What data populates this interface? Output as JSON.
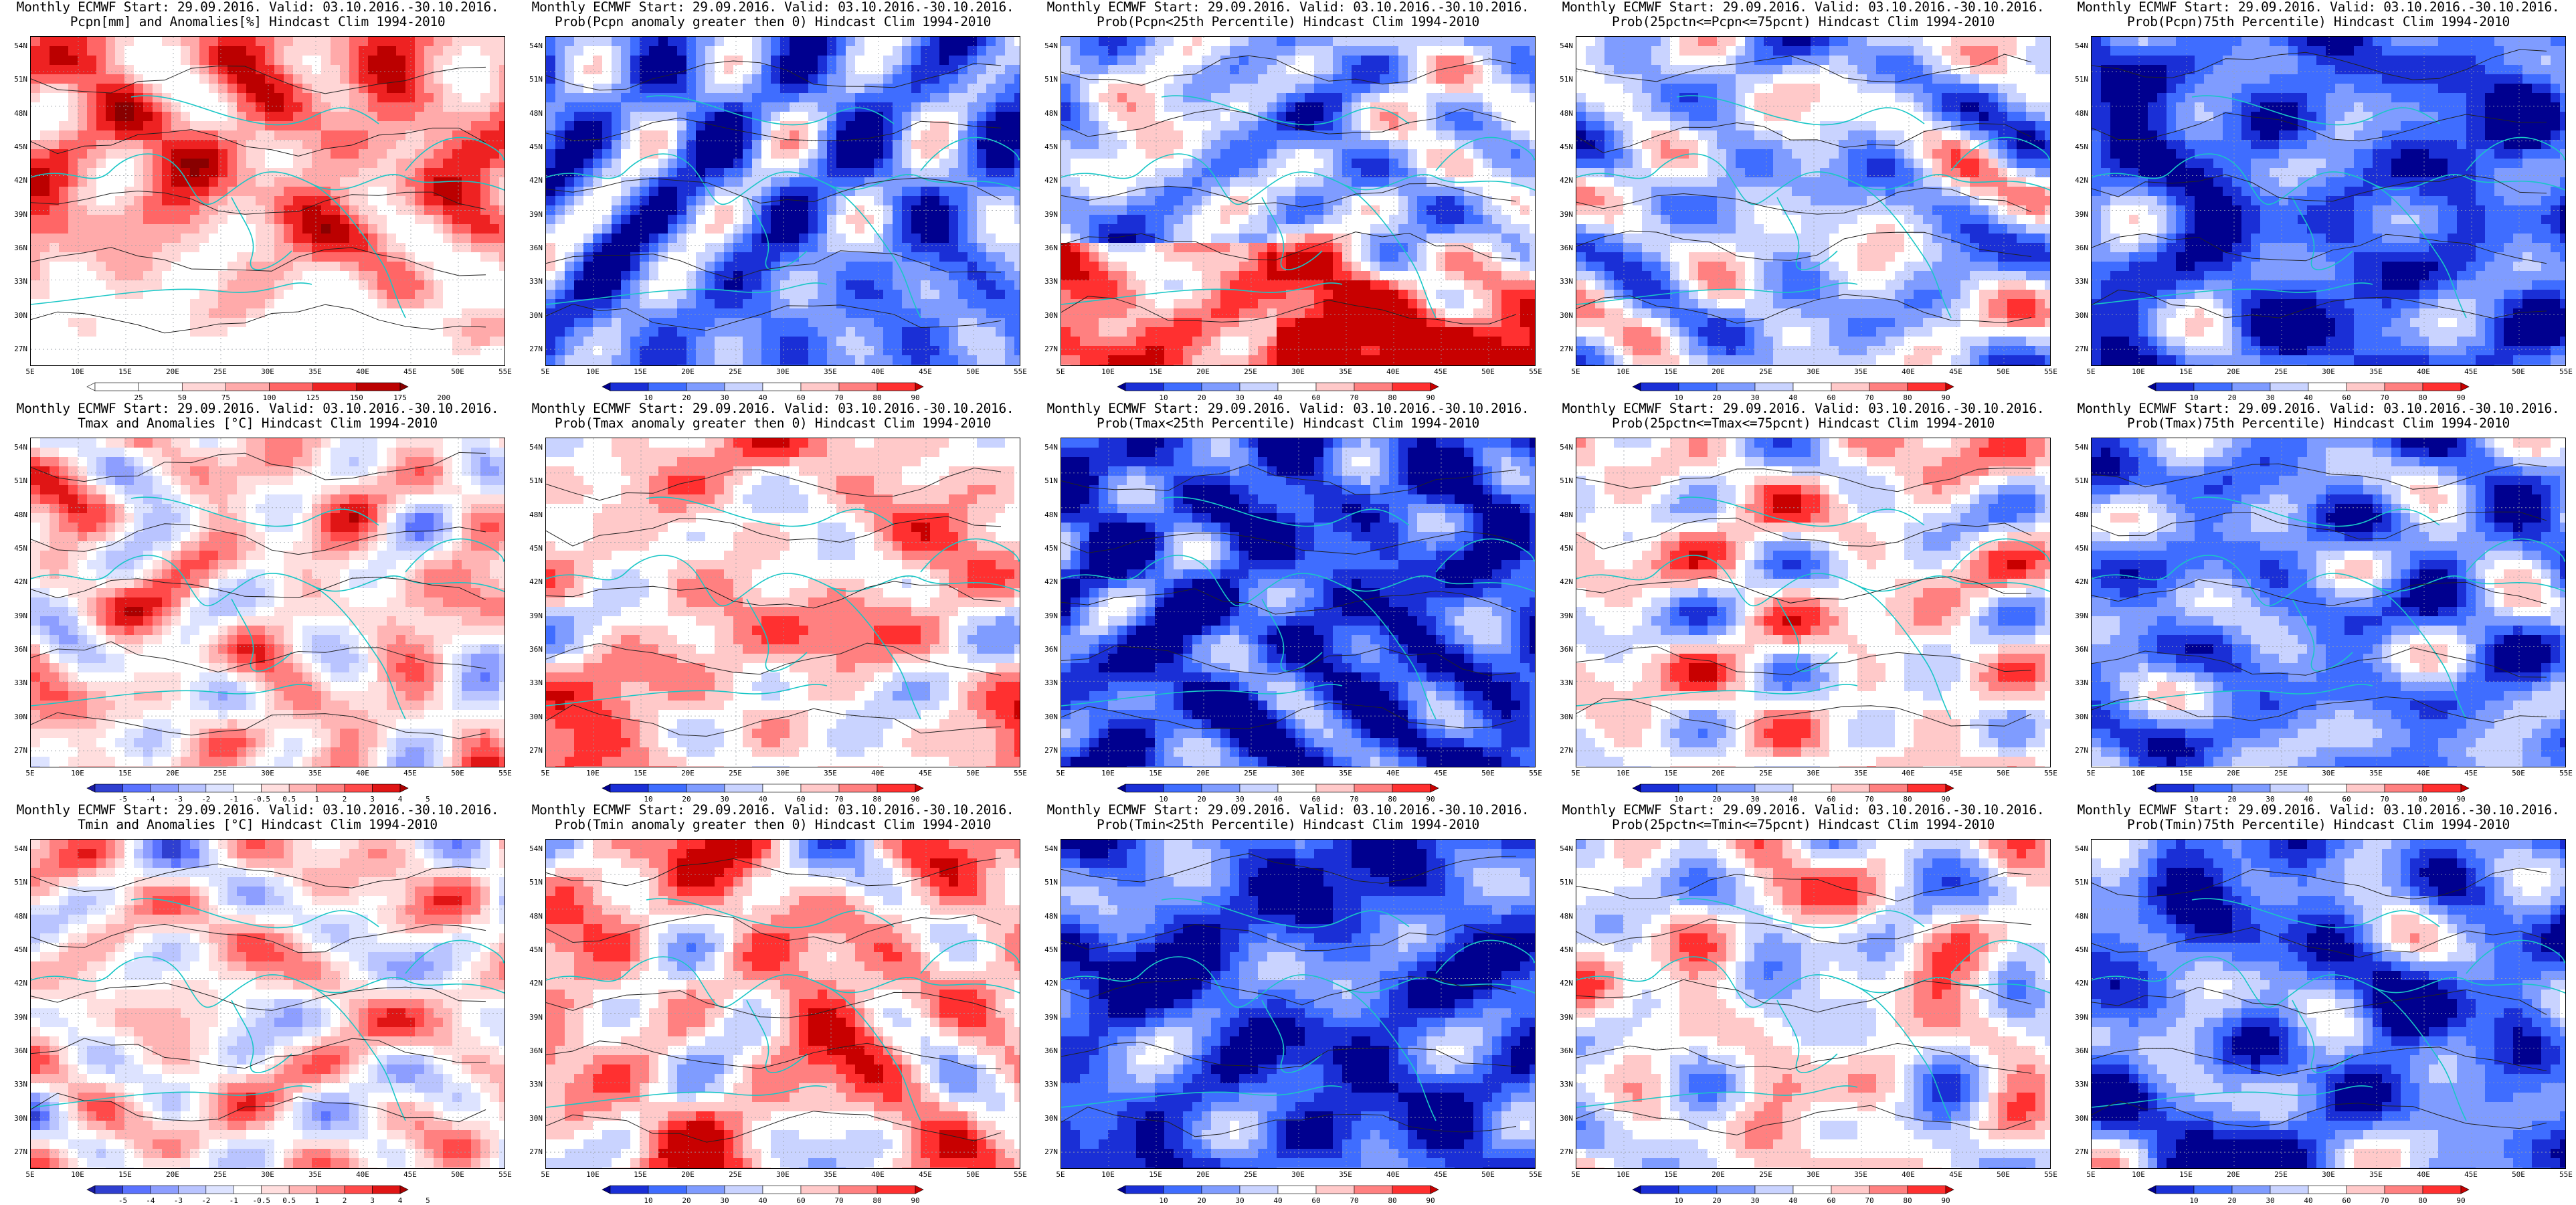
{
  "layout_grid": {
    "rows": 3,
    "cols": 5
  },
  "axes": {
    "lat_labels": [
      "54N",
      "51N",
      "48N",
      "45N",
      "42N",
      "39N",
      "36N",
      "33N",
      "30N",
      "27N"
    ],
    "lon_labels": [
      "5E",
      "10E",
      "15E",
      "20E",
      "25E",
      "30E",
      "35E",
      "40E",
      "45E",
      "50E",
      "55E"
    ]
  },
  "colorbars": {
    "pcpn_anom": {
      "labels": [
        "25",
        "50",
        "75",
        "100",
        "125",
        "150",
        "175",
        "200"
      ],
      "colors": [
        "#ffffff",
        "#ffffff",
        "#ffffff",
        "#ffd6d6",
        "#ffaaaa",
        "#ff6666",
        "#ee2222",
        "#bb0000",
        "#880000"
      ]
    },
    "prob": {
      "labels": [
        "10",
        "20",
        "30",
        "40",
        "60",
        "70",
        "80",
        "90"
      ],
      "colors": [
        "#00008f",
        "#1a2fd6",
        "#3f6dff",
        "#7f9cff",
        "#c9d3ff",
        "#ffffff",
        "#ffc9c9",
        "#ff8080",
        "#ff3030",
        "#c80000"
      ]
    },
    "temp_anom": {
      "labels": [
        "-5",
        "-4",
        "-3",
        "-2",
        "-1",
        "-0.5",
        "0.5",
        "1",
        "2",
        "3",
        "4",
        "5"
      ],
      "colors": [
        "#1a1aa0",
        "#2f3fd0",
        "#5a72ff",
        "#8d9eff",
        "#b9c4ff",
        "#dde3ff",
        "#ffffff",
        "#ffdede",
        "#ffb4b4",
        "#ff8080",
        "#ff4a4a",
        "#e01515",
        "#aa0000"
      ]
    }
  },
  "panels": [
    {
      "title1": "Monthly ECMWF Start: 29.09.2016. Valid: 03.10.2016.-30.10.2016.",
      "title2": "Pcpn[mm] and Anomalies[%] Hindcast Clim 1994-2010",
      "palette": "pcpn_anom",
      "fields": {
        "bias": 0.1,
        "seed": 11,
        "south_dry": 1
      }
    },
    {
      "title1": "Monthly ECMWF Start: 29.09.2016. Valid: 03.10.2016.-30.10.2016.",
      "title2": "Prob(Pcpn anomaly greater then 0) Hindcast Clim 1994-2010",
      "palette": "prob",
      "fields": {
        "bias": -0.45,
        "seed": 12
      }
    },
    {
      "title1": "Monthly ECMWF Start: 29.09.2016. Valid: 03.10.2016.-30.10.2016.",
      "title2": "Prob(Pcpn<25th Percentile) Hindcast Clim 1994-2010",
      "palette": "prob",
      "fields": {
        "bias": -0.2,
        "seed": 13,
        "south_hot": 1
      }
    },
    {
      "title1": "Monthly ECMWF Start: 29.09.2016. Valid: 03.10.2016.-30.10.2016.",
      "title2": "Prob(25pctn<=Pcpn<=75pcnt) Hindcast Clim 1994-2010",
      "palette": "prob",
      "fields": {
        "bias": -0.15,
        "seed": 14
      }
    },
    {
      "title1": "Monthly ECMWF Start: 29.09.2016. Valid: 03.10.2016.-30.10.2016.",
      "title2": "Prob(Pcpn)75th Percentile) Hindcast Clim 1994-2010",
      "palette": "prob",
      "fields": {
        "bias": -0.6,
        "seed": 15
      }
    },
    {
      "title1": "Monthly ECMWF Start: 29.09.2016. Valid: 03.10.2016.-30.10.2016.",
      "title2": "Tmax and Anomalies [°C] Hindcast Clim 1994-2010",
      "palette": "temp_anom",
      "fields": {
        "bias": 0.15,
        "seed": 21
      }
    },
    {
      "title1": "Monthly ECMWF Start: 29.09.2016. Valid: 03.10.2016.-30.10.2016.",
      "title2": "Prob(Tmax anomaly greater then 0) Hindcast Clim 1994-2010",
      "palette": "prob",
      "fields": {
        "bias": 0.3,
        "seed": 22
      }
    },
    {
      "title1": "Monthly ECMWF Start: 29.09.2016. Valid: 03.10.2016.-30.10.2016.",
      "title2": "Prob(Tmax<25th Percentile) Hindcast Clim 1994-2010",
      "palette": "prob",
      "fields": {
        "bias": -0.7,
        "seed": 23
      }
    },
    {
      "title1": "Monthly ECMWF Start: 29.09.2016. Valid: 03.10.2016.-30.10.2016.",
      "title2": "Prob(25pctn<=Tmax<=75pcnt) Hindcast Clim 1994-2010",
      "palette": "prob",
      "fields": {
        "bias": 0.15,
        "seed": 24
      }
    },
    {
      "title1": "Monthly ECMWF Start: 29.09.2016. Valid: 03.10.2016.-30.10.2016.",
      "title2": "Prob(Tmax)75th Percentile) Hindcast Clim 1994-2010",
      "palette": "prob",
      "fields": {
        "bias": -0.4,
        "seed": 25
      }
    },
    {
      "title1": "Monthly ECMWF Start: 29.09.2016. Valid: 03.10.2016.-30.10.2016.",
      "title2": "Tmin and Anomalies [°C] Hindcast Clim 1994-2010",
      "palette": "temp_anom",
      "fields": {
        "bias": 0.1,
        "seed": 31
      }
    },
    {
      "title1": "Monthly ECMWF Start: 29.09.2016. Valid: 03.10.2016.-30.10.2016.",
      "title2": "Prob(Tmin anomaly greater then 0) Hindcast Clim 1994-2010",
      "palette": "prob",
      "fields": {
        "bias": 0.35,
        "seed": 32
      }
    },
    {
      "title1": "Monthly ECMWF Start: 29.09.2016. Valid: 03.10.2016.-30.10.2016.",
      "title2": "Prob(Tmin<25th Percentile) Hindcast Clim 1994-2010",
      "palette": "prob",
      "fields": {
        "bias": -0.65,
        "seed": 33
      }
    },
    {
      "title1": "Monthly ECMWF Start: 29.09.2016. Valid: 03.10.2016.-30.10.2016.",
      "title2": "Prob(25pctn<=Tmin<=75pcnt) Hindcast Clim 1994-2010",
      "palette": "prob",
      "fields": {
        "bias": 0.1,
        "seed": 34
      }
    },
    {
      "title1": "Monthly ECMWF Start: 29.09.2016. Valid: 03.10.2016.-30.10.2016.",
      "title2": "Prob(Tmin)75th Percentile) Hindcast Clim 1994-2010",
      "palette": "prob",
      "fields": {
        "bias": -0.5,
        "seed": 35
      }
    }
  ]
}
